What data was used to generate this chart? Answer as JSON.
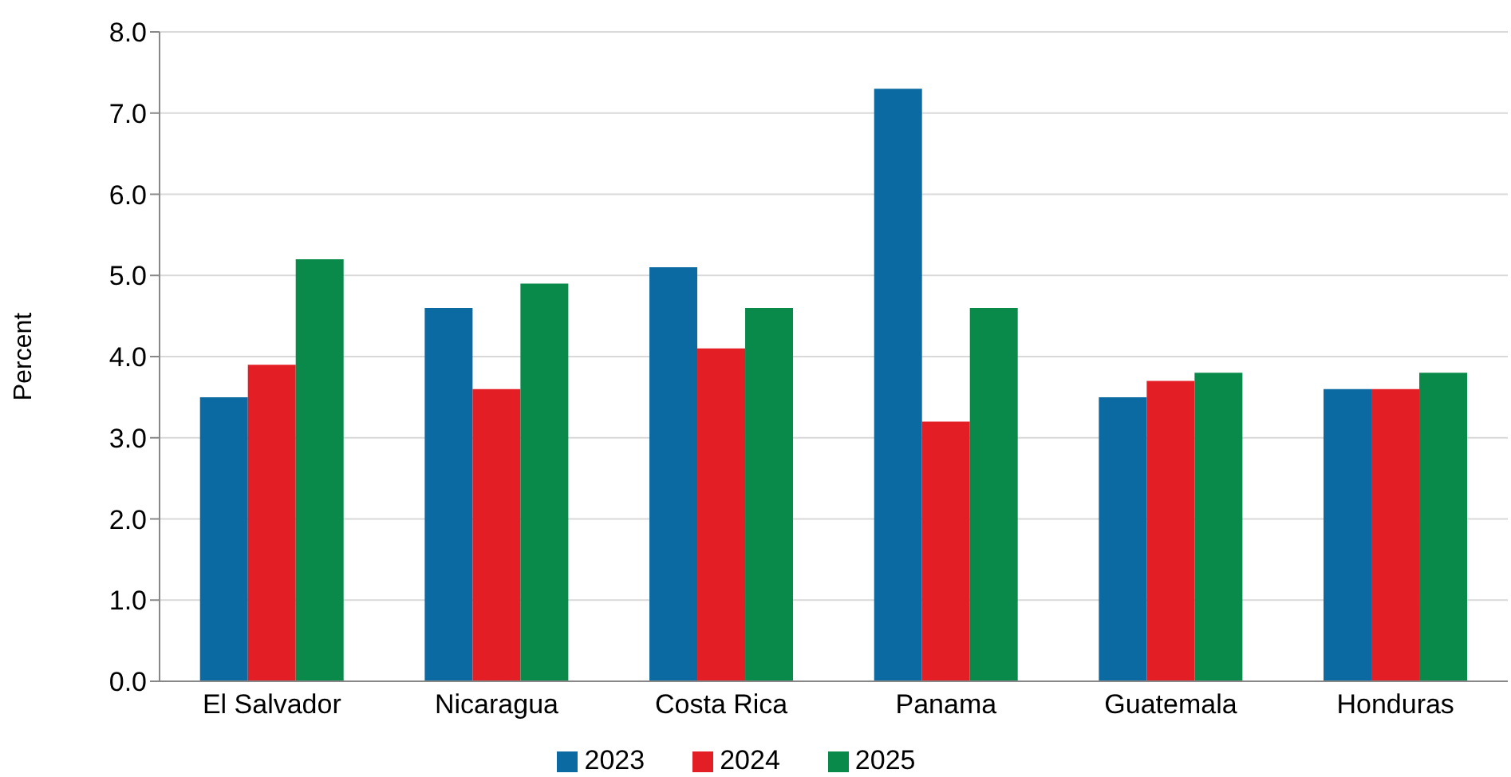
{
  "chart_data": {
    "type": "bar",
    "ylabel": "Percent",
    "categories": [
      "El Salvador",
      "Nicaragua",
      "Costa Rica",
      "Panama",
      "Guatemala",
      "Honduras"
    ],
    "series": [
      {
        "name": "2023",
        "color": "#0a6aa1",
        "values": [
          3.5,
          4.6,
          5.1,
          7.3,
          3.5,
          3.6
        ]
      },
      {
        "name": "2024",
        "color": "#e31e24",
        "values": [
          3.9,
          3.6,
          4.1,
          3.2,
          3.7,
          3.6
        ]
      },
      {
        "name": "2025",
        "color": "#0a8a4a",
        "values": [
          5.2,
          4.9,
          4.6,
          4.6,
          3.8,
          3.8
        ]
      }
    ],
    "ylim": [
      0,
      8
    ],
    "yticks": [
      {
        "value": 0,
        "label": "0.0"
      },
      {
        "value": 1,
        "label": "1.0"
      },
      {
        "value": 2,
        "label": "2.0"
      },
      {
        "value": 3,
        "label": "3.0"
      },
      {
        "value": 4,
        "label": "4.0"
      },
      {
        "value": 5,
        "label": "5.0"
      },
      {
        "value": 6,
        "label": "6.0"
      },
      {
        "value": 7,
        "label": "7.0"
      },
      {
        "value": 8,
        "label": "8.0"
      }
    ],
    "grid": "y",
    "legend": "bottom"
  }
}
